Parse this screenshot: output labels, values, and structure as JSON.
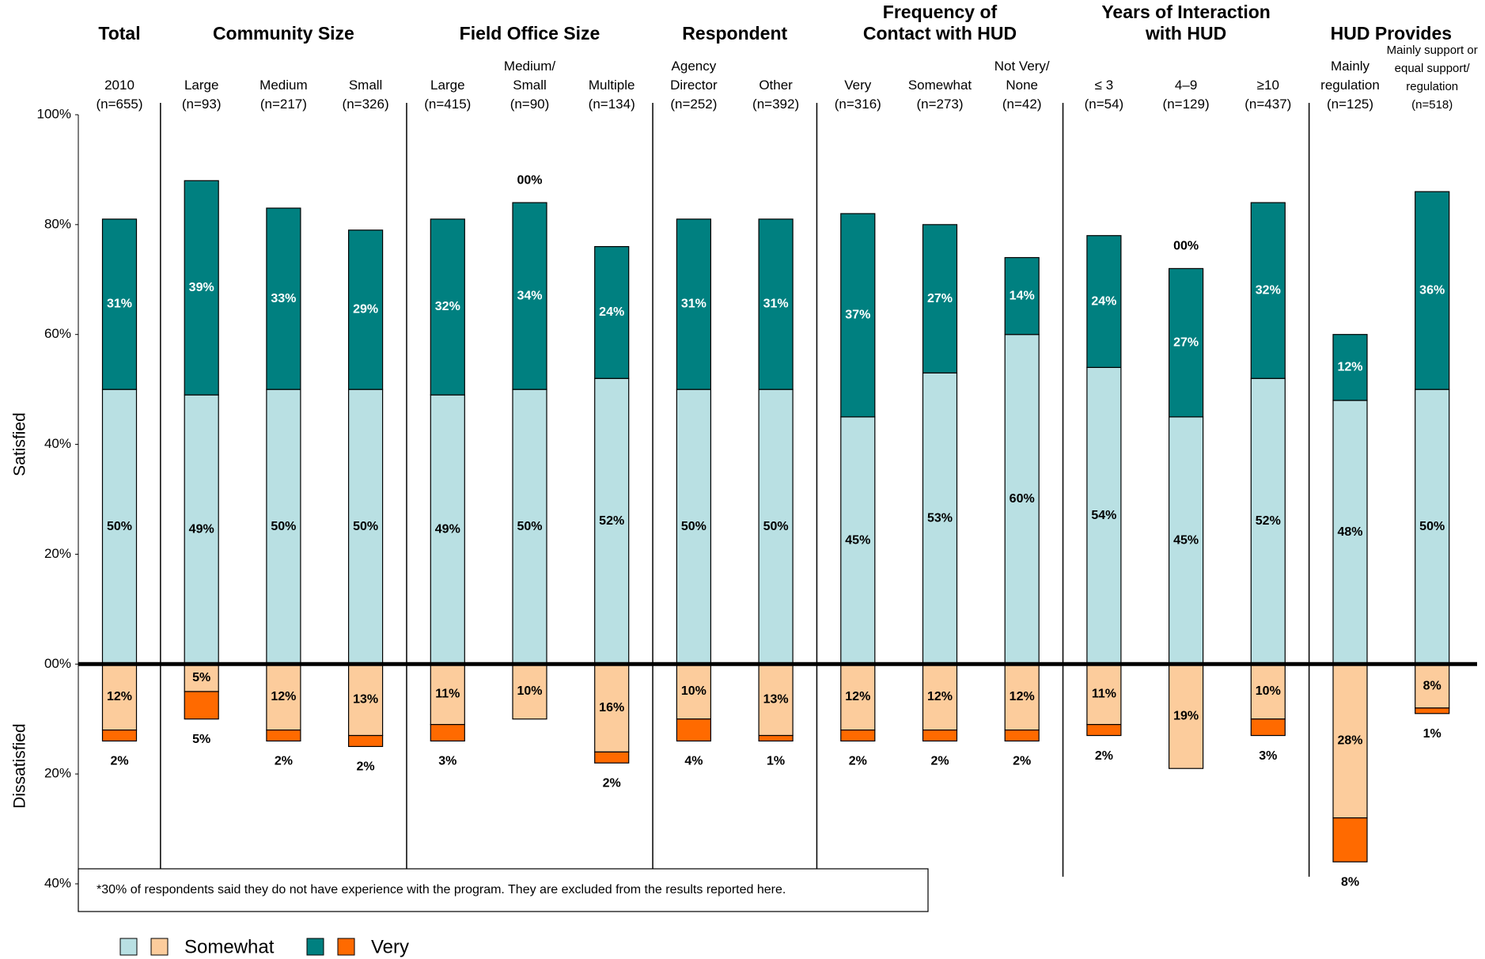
{
  "chart_data": {
    "type": "diverging-stacked-bar",
    "groups": [
      {
        "name": "Total",
        "categories": [
          "2010\n(n=655)"
        ]
      },
      {
        "name": "Community Size",
        "categories": [
          "Large\n(n=93)",
          "Medium\n(n=217)",
          "Small\n(n=326)"
        ]
      },
      {
        "name": "Field Office Size",
        "categories": [
          "Large\n(n=415)",
          "Medium/\nSmall\n(n=90)",
          "Multiple\n(n=134)"
        ]
      },
      {
        "name": "Respondent",
        "categories": [
          "Agency\nDirector\n(n=252)",
          "Other\n(n=392)"
        ]
      },
      {
        "name": "Frequency of\nContact with HUD",
        "categories": [
          "Very\n(n=316)",
          "Somewhat\n(n=273)",
          "Not Very/\nNone\n(n=42)"
        ]
      },
      {
        "name": "Years of Interaction\nwith HUD",
        "categories": [
          "≤ 3\n(n=54)",
          "4–9\n(n=129)",
          "≥10\n(n=437)"
        ]
      },
      {
        "name": "HUD Provides",
        "categories": [
          "Mainly\nregulation\n(n=125)",
          "Mainly support or\nequal support/\nregulation\n(n=518)"
        ]
      }
    ],
    "series": [
      {
        "name": "Somewhat",
        "color": "#b9e0e3",
        "values": [
          50,
          49,
          50,
          50,
          49,
          50,
          52,
          50,
          50,
          45,
          53,
          60,
          54,
          45,
          52,
          48,
          50
        ],
        "value_labels": [
          "50%",
          "49%",
          "50%",
          "50%",
          "49%",
          "50%",
          "52%",
          "50%",
          "50%",
          "45%",
          "53%",
          "60%",
          "54%",
          "45%",
          "52%",
          "48%",
          "50%"
        ]
      },
      {
        "name": "Very",
        "color": "#008080",
        "values": [
          31,
          39,
          33,
          29,
          32,
          34,
          24,
          31,
          31,
          37,
          27,
          14,
          24,
          27,
          32,
          12,
          36
        ],
        "value_labels": [
          "31%",
          "39%",
          "33%",
          "29%",
          "32%",
          "34%",
          "24%",
          "31%",
          "31%",
          "37%",
          "27%",
          "14%",
          "24%",
          "27%",
          "32%",
          "12%",
          "36%"
        ]
      },
      {
        "name": "Somewhat",
        "color": "#fccc9c",
        "values": [
          -12,
          -5,
          -12,
          -13,
          -11,
          -10,
          -16,
          -10,
          -13,
          -12,
          -12,
          -12,
          -11,
          -19,
          -10,
          -28,
          -8
        ],
        "value_labels": [
          "12%",
          "5%",
          "12%",
          "13%",
          "11%",
          "10%",
          "16%",
          "10%",
          "13%",
          "12%",
          "12%",
          "12%",
          "11%",
          "19%",
          "10%",
          "28%",
          "8%"
        ]
      },
      {
        "name": "Very",
        "color": "#ff6a00",
        "values": [
          -2,
          -5,
          -2,
          -2,
          -3,
          0,
          -2,
          -4,
          -1,
          -2,
          -2,
          -2,
          -2,
          0,
          -3,
          -8,
          -1
        ],
        "value_labels": [
          "2%",
          "5%",
          "2%",
          "2%",
          "3%",
          "00%",
          "2%",
          "4%",
          "1%",
          "2%",
          "2%",
          "2%",
          "2%",
          "00%",
          "3%",
          "8%",
          "1%"
        ]
      }
    ],
    "ylim": [
      -40,
      100
    ],
    "yticks": [
      {
        "value": 100,
        "label": "100%"
      },
      {
        "value": 80,
        "label": "80%"
      },
      {
        "value": 60,
        "label": "60%"
      },
      {
        "value": 40,
        "label": "40%"
      },
      {
        "value": 20,
        "label": "20%"
      },
      {
        "value": 0,
        "label": "00%"
      },
      {
        "value": -20,
        "label": "20%"
      },
      {
        "value": -40,
        "label": "40%"
      }
    ],
    "y_axis_labels": [
      "Satisfied",
      "Dissatisfied"
    ],
    "footnote": "*30% of respondents said they do not have experience with the program.  They are excluded from the results reported here."
  }
}
